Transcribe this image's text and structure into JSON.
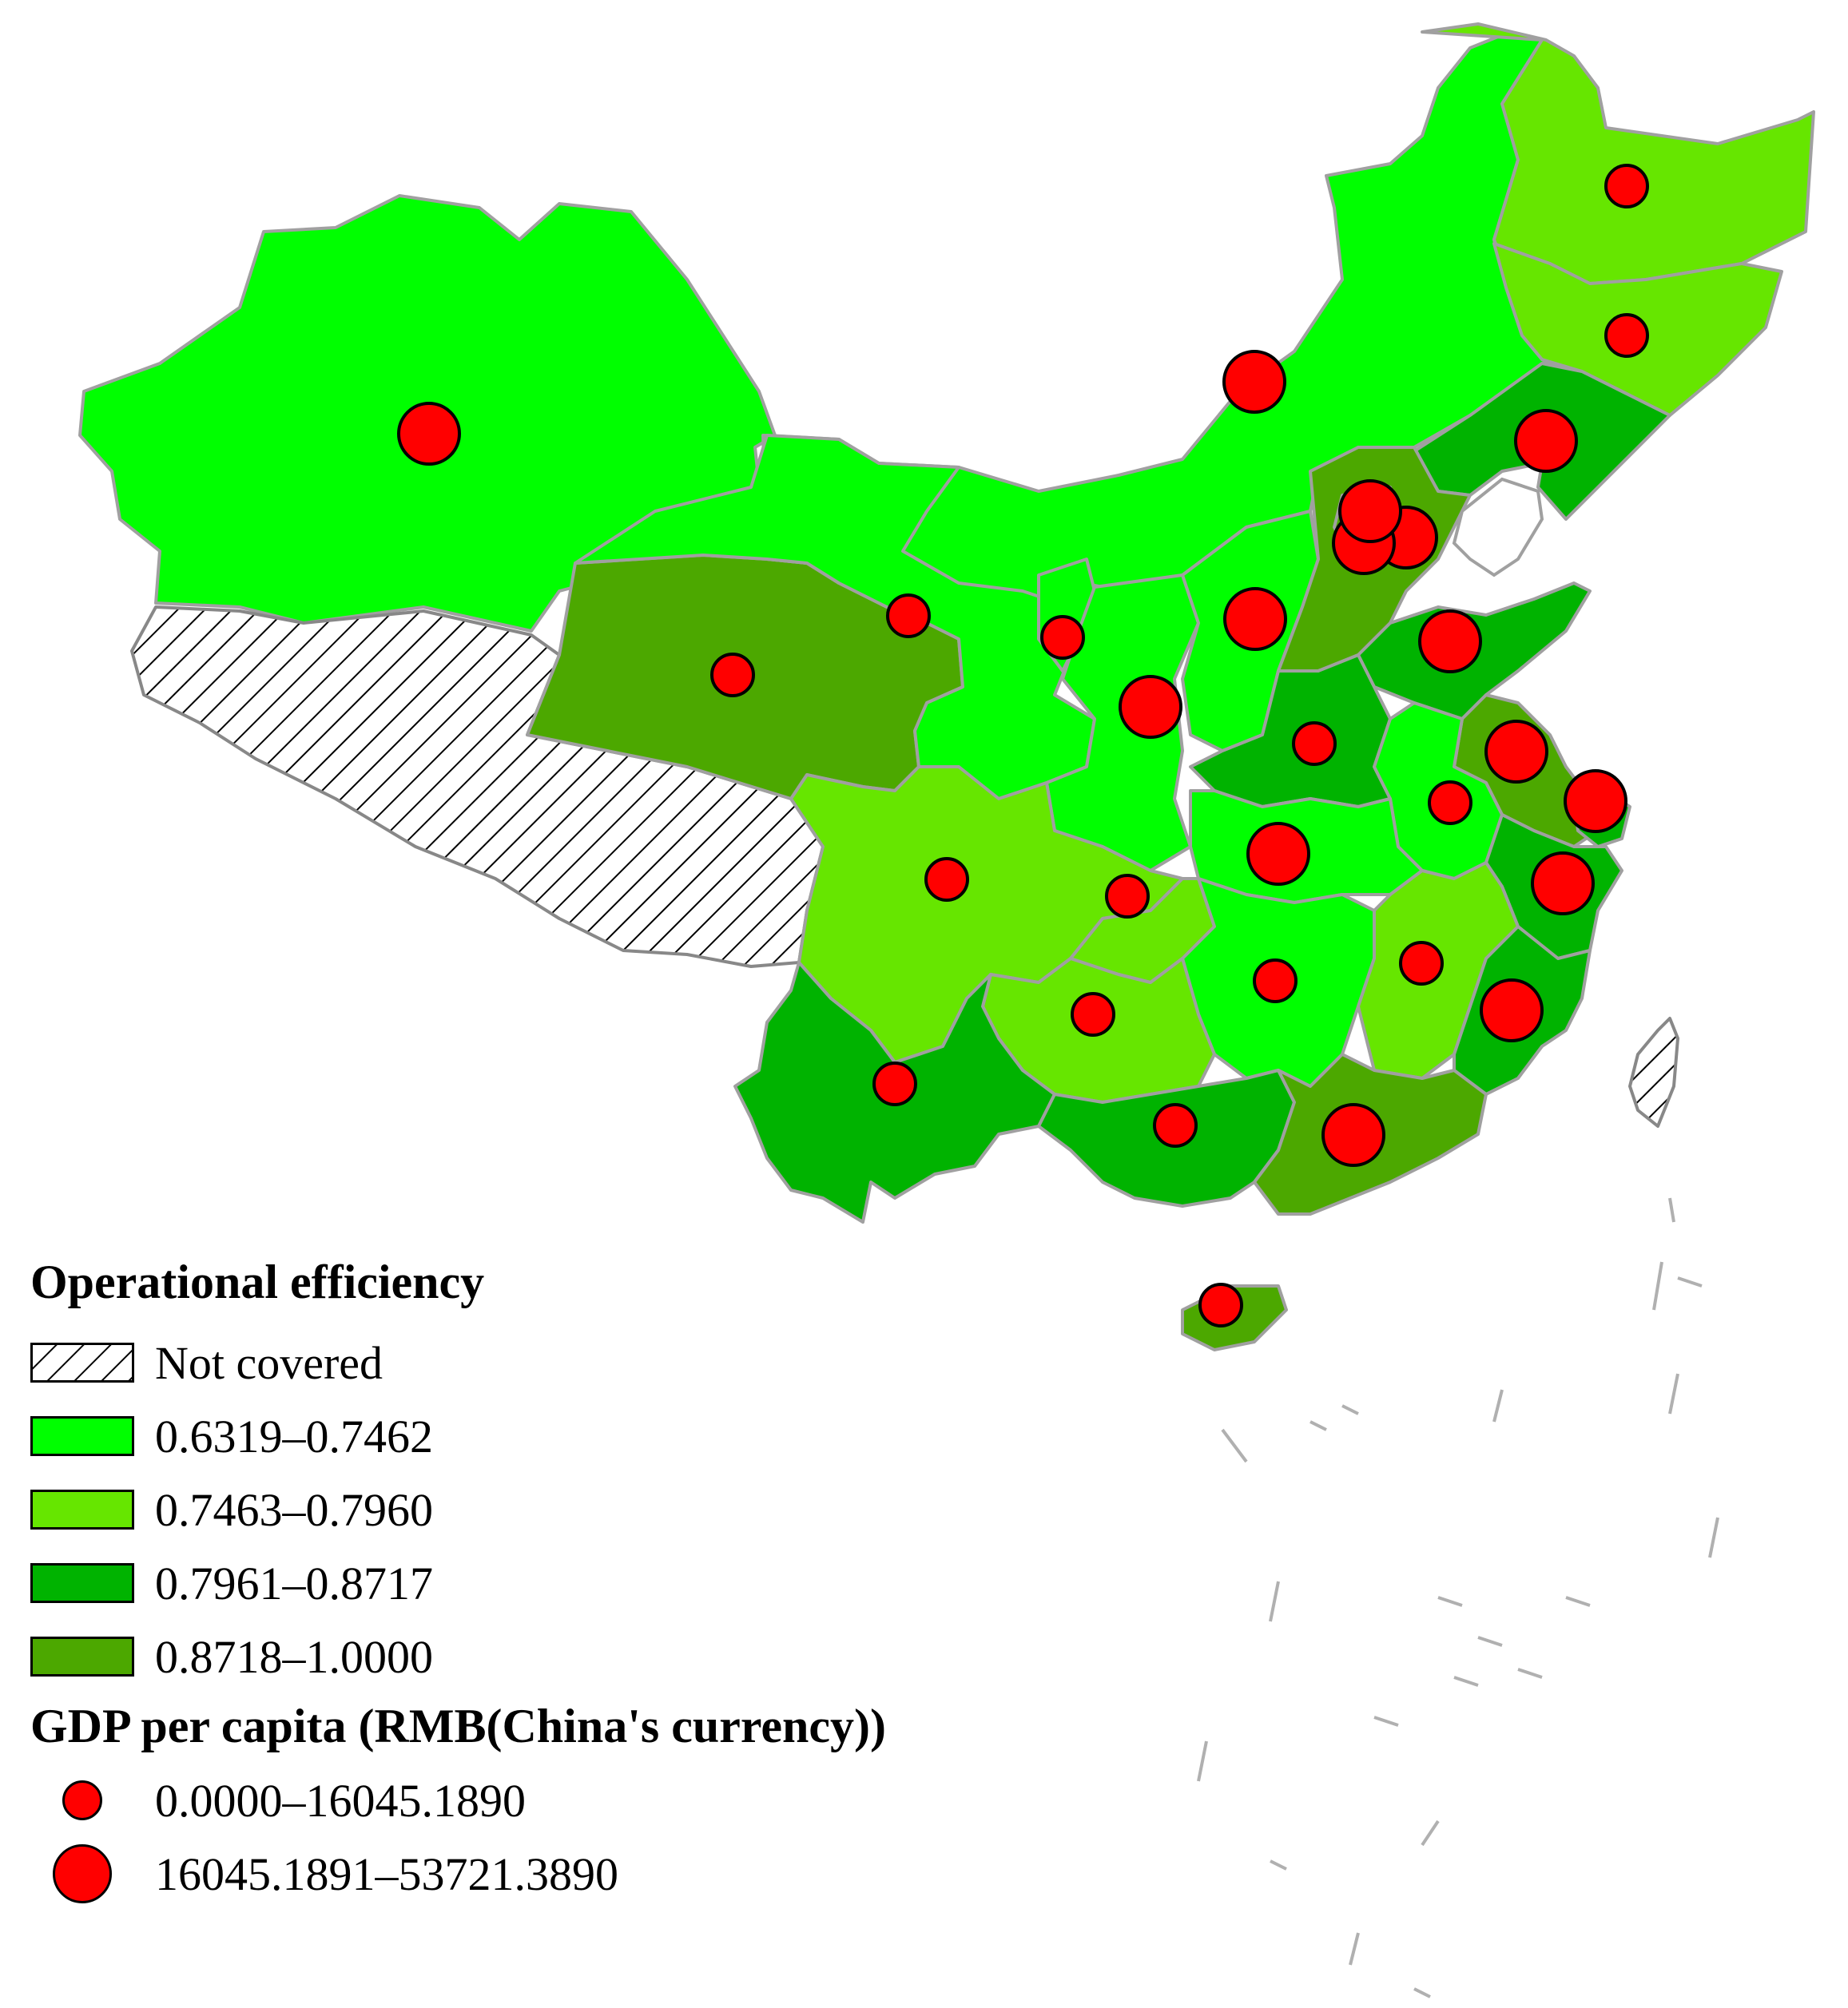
{
  "colors": {
    "not_covered": "hatched",
    "class1": "#00ff00",
    "class2": "#66e600",
    "class3": "#00b300",
    "class4": "#4ca800",
    "border": "#a0a0a0",
    "gdp_dot": "#ff0000"
  },
  "legend": {
    "efficiency_title": "Operational efficiency",
    "efficiency_classes": [
      {
        "label": "Not covered",
        "fill": "hatch"
      },
      {
        "label": "0.6319–0.7462",
        "fill": "#00ff00"
      },
      {
        "label": "0.7463–0.7960",
        "fill": "#66e600"
      },
      {
        "label": "0.7961–0.8717",
        "fill": "#00b300"
      },
      {
        "label": "0.8718–1.0000",
        "fill": "#4ca800"
      }
    ],
    "gdp_title": "GDP per capita (RMB(China's currency))",
    "gdp_classes": [
      {
        "label": "0.0000–16045.1890",
        "size": "small"
      },
      {
        "label": "16045.1891–53721.3890",
        "size": "large"
      }
    ]
  }
}
